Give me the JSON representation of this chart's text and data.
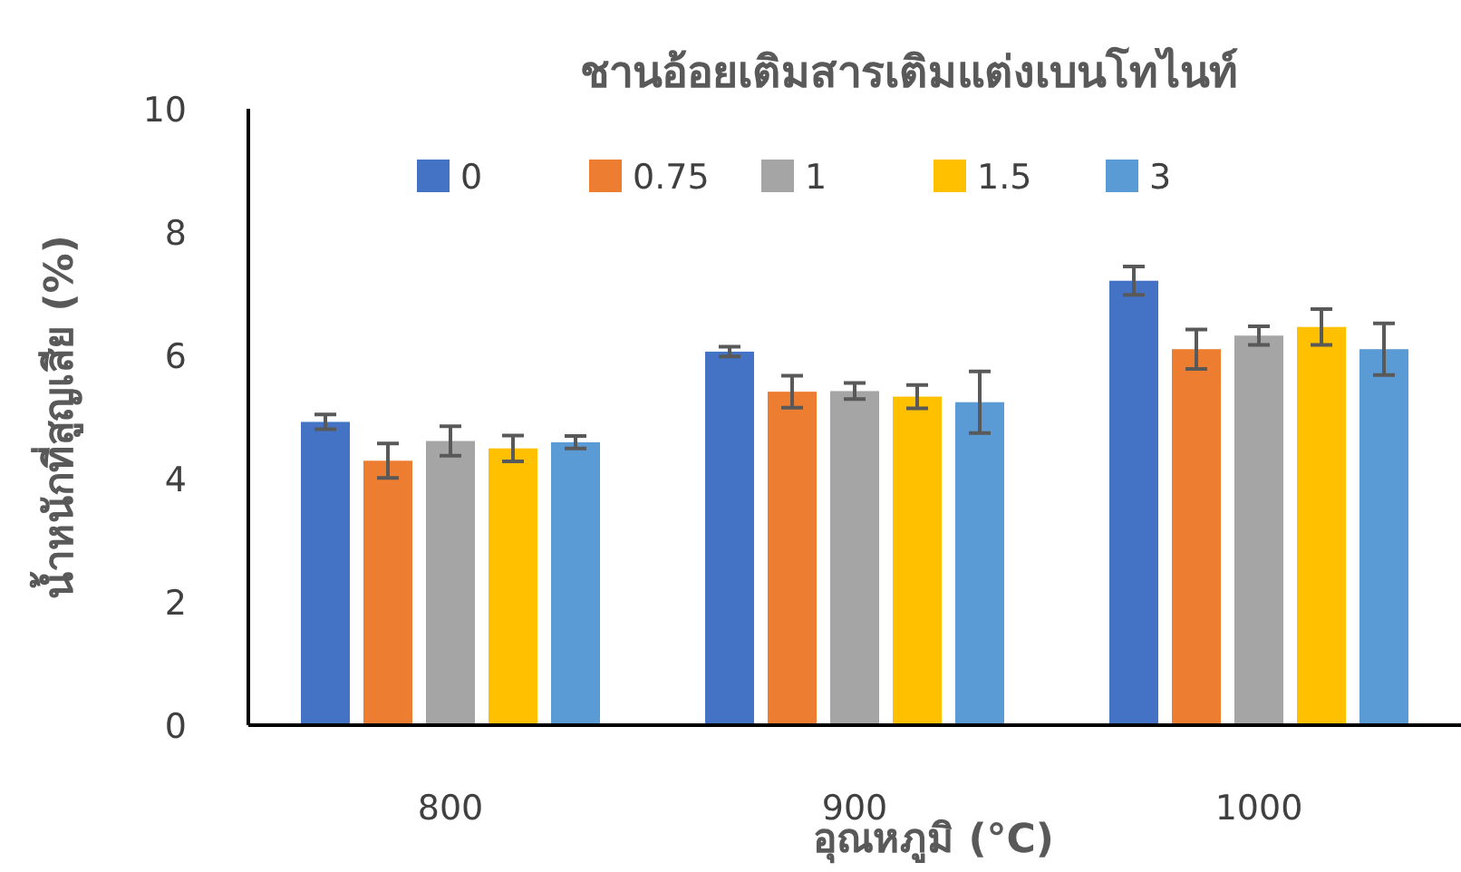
{
  "chart_data": {
    "type": "bar",
    "title": "ชานอ้อยเติมสารเติมแต่งเบนโทไนท์",
    "xlabel": "อุณหภูมิ (°C)",
    "ylabel": "น้ำหนักที่สูญเสีย (%)",
    "categories": [
      "800",
      "900",
      "1000"
    ],
    "ylim": [
      0,
      10
    ],
    "yticks": [
      0,
      2,
      4,
      6,
      8,
      10
    ],
    "grid": false,
    "legend": "top",
    "series": [
      {
        "name": "0",
        "color": "#4472c4",
        "values": [
          4.92,
          6.06,
          7.21
        ],
        "errors": [
          0.12,
          0.08,
          0.23
        ]
      },
      {
        "name": "0.75",
        "color": "#ed7d31",
        "values": [
          4.29,
          5.41,
          6.1
        ],
        "errors": [
          0.28,
          0.26,
          0.32
        ]
      },
      {
        "name": "1",
        "color": "#a5a5a5",
        "values": [
          4.61,
          5.42,
          6.32
        ],
        "errors": [
          0.24,
          0.13,
          0.15
        ]
      },
      {
        "name": "1.5",
        "color": "#ffc000",
        "values": [
          4.49,
          5.33,
          6.46
        ],
        "errors": [
          0.21,
          0.19,
          0.29
        ]
      },
      {
        "name": "3",
        "color": "#5b9bd5",
        "values": [
          4.59,
          5.24,
          6.1
        ],
        "errors": [
          0.1,
          0.5,
          0.42
        ]
      }
    ]
  }
}
